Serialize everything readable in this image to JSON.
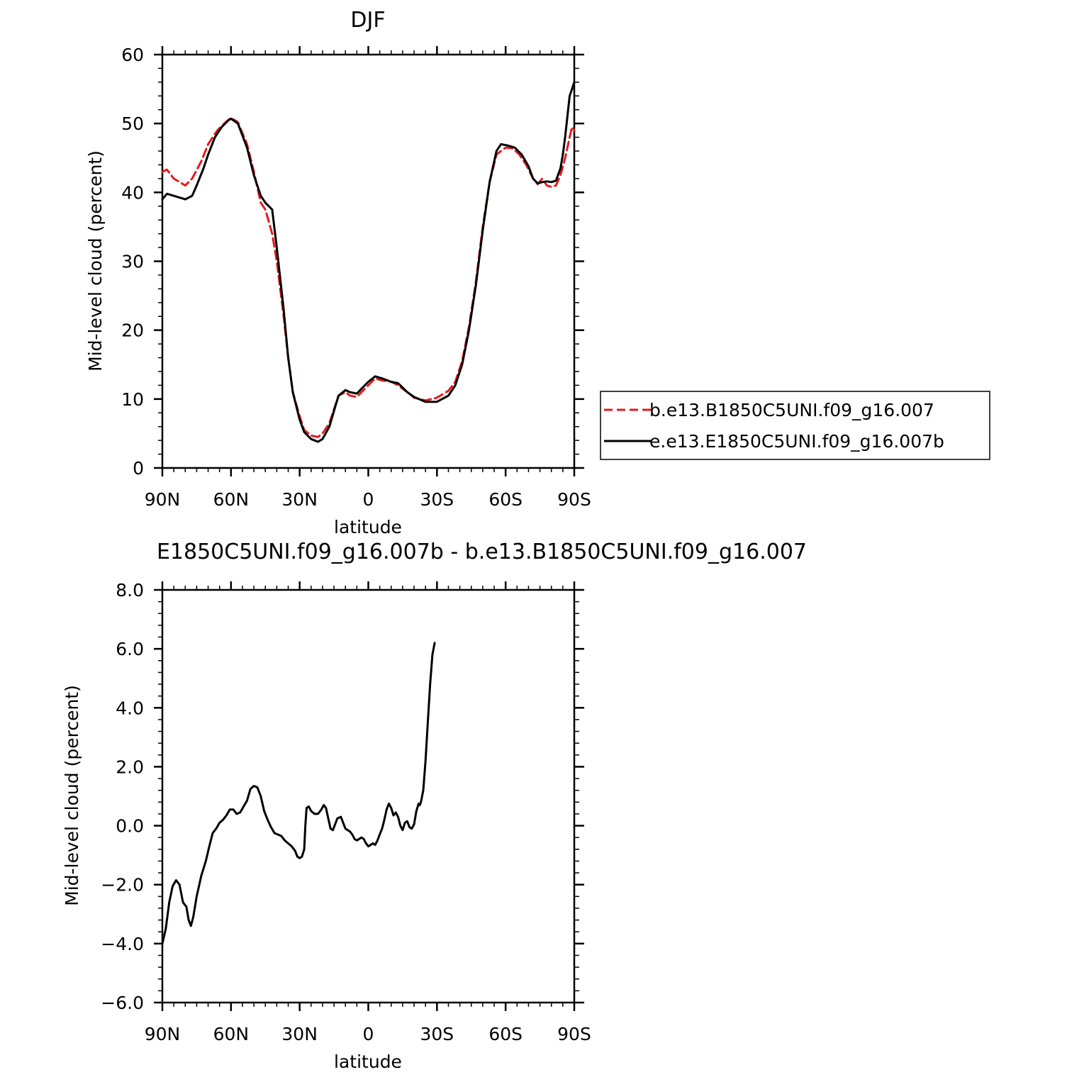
{
  "chart_data": [
    {
      "type": "line",
      "title": "DJF",
      "xlabel": "latitude",
      "ylabel": "Mid-level cloud (percent)",
      "xlim": [
        90,
        -90
      ],
      "ylim": [
        0,
        60
      ],
      "x_ticks": [
        {
          "value": 90,
          "label": "90N"
        },
        {
          "value": 60,
          "label": "60N"
        },
        {
          "value": 30,
          "label": "30N"
        },
        {
          "value": 0,
          "label": "0"
        },
        {
          "value": -30,
          "label": "30S"
        },
        {
          "value": -60,
          "label": "60S"
        },
        {
          "value": -90,
          "label": "90S"
        }
      ],
      "y_ticks": [
        {
          "value": 0,
          "label": "0"
        },
        {
          "value": 10,
          "label": "10"
        },
        {
          "value": 20,
          "label": "20"
        },
        {
          "value": 30,
          "label": "30"
        },
        {
          "value": 40,
          "label": "40"
        },
        {
          "value": 50,
          "label": "50"
        },
        {
          "value": 60,
          "label": "60"
        }
      ],
      "legend_position": "right",
      "series": [
        {
          "name": "b.e13.B1850C5UNI.f09_g16.007",
          "color": "#e41a1c",
          "dash": true,
          "points": [
            [
              90,
              43
            ],
            [
              88,
              43.3
            ],
            [
              85,
              42
            ],
            [
              80,
              41
            ],
            [
              77,
              42
            ],
            [
              73,
              44.5
            ],
            [
              70,
              47
            ],
            [
              66,
              49
            ],
            [
              62,
              50.3
            ],
            [
              60,
              50.8
            ],
            [
              57,
              50.2
            ],
            [
              53,
              47
            ],
            [
              50,
              43
            ],
            [
              47,
              38.5
            ],
            [
              45,
              37.5
            ],
            [
              42,
              34
            ],
            [
              40,
              30
            ],
            [
              37,
              22
            ],
            [
              35,
              16
            ],
            [
              33,
              11
            ],
            [
              30,
              7.5
            ],
            [
              28,
              5.5
            ],
            [
              25,
              4.7
            ],
            [
              22,
              4.5
            ],
            [
              20,
              5
            ],
            [
              17,
              6.5
            ],
            [
              15,
              8.5
            ],
            [
              13,
              10.5
            ],
            [
              10,
              11
            ],
            [
              8,
              10.5
            ],
            [
              5,
              10.3
            ],
            [
              3,
              11
            ],
            [
              0,
              12
            ],
            [
              -3,
              13
            ],
            [
              -6,
              12.7
            ],
            [
              -10,
              12.5
            ],
            [
              -13,
              12
            ],
            [
              -17,
              11
            ],
            [
              -20,
              10.2
            ],
            [
              -25,
              9.8
            ],
            [
              -30,
              10.2
            ],
            [
              -35,
              11.2
            ],
            [
              -38,
              12.5
            ],
            [
              -41,
              15.5
            ],
            [
              -44,
              20.5
            ],
            [
              -47,
              27
            ],
            [
              -50,
              35
            ],
            [
              -53,
              41.5
            ],
            [
              -56,
              45.5
            ],
            [
              -60,
              46.5
            ],
            [
              -63,
              46.4
            ],
            [
              -66,
              45.5
            ],
            [
              -69,
              44
            ],
            [
              -72,
              42
            ],
            [
              -74,
              41.2
            ],
            [
              -76,
              42
            ],
            [
              -78,
              41
            ],
            [
              -80,
              40.8
            ],
            [
              -82,
              41
            ],
            [
              -84,
              42.5
            ],
            [
              -86,
              45
            ],
            [
              -88,
              48
            ],
            [
              -89,
              49.5
            ],
            [
              -90,
              49
            ]
          ]
        },
        {
          "name": "e.e13.E1850C5UNI.f09_g16.007b",
          "color": "#000000",
          "dash": false,
          "points": [
            [
              90,
              39
            ],
            [
              88,
              39.8
            ],
            [
              85,
              39.5
            ],
            [
              82,
              39.2
            ],
            [
              80,
              39
            ],
            [
              77,
              39.5
            ],
            [
              75,
              41
            ],
            [
              72,
              43.5
            ],
            [
              70,
              45.5
            ],
            [
              67,
              48
            ],
            [
              64,
              49.5
            ],
            [
              61,
              50.5
            ],
            [
              60,
              50.7
            ],
            [
              57,
              50
            ],
            [
              53,
              46.5
            ],
            [
              50,
              42.5
            ],
            [
              47,
              39.5
            ],
            [
              45,
              38.5
            ],
            [
              42,
              37.5
            ],
            [
              40,
              32
            ],
            [
              37,
              23
            ],
            [
              35,
              16
            ],
            [
              33,
              11
            ],
            [
              30,
              7
            ],
            [
              28,
              5.2
            ],
            [
              25,
              4.2
            ],
            [
              22,
              3.8
            ],
            [
              20,
              4.2
            ],
            [
              17,
              6
            ],
            [
              15,
              8.3
            ],
            [
              13,
              10.5
            ],
            [
              10,
              11.3
            ],
            [
              8,
              11
            ],
            [
              5,
              10.8
            ],
            [
              3,
              11.5
            ],
            [
              0,
              12.5
            ],
            [
              -3,
              13.3
            ],
            [
              -6,
              13
            ],
            [
              -10,
              12.5
            ],
            [
              -13,
              12.3
            ],
            [
              -17,
              11
            ],
            [
              -20,
              10.3
            ],
            [
              -25,
              9.6
            ],
            [
              -30,
              9.6
            ],
            [
              -35,
              10.5
            ],
            [
              -38,
              12
            ],
            [
              -41,
              15
            ],
            [
              -44,
              20
            ],
            [
              -47,
              26.5
            ],
            [
              -50,
              34.5
            ],
            [
              -53,
              41.5
            ],
            [
              -56,
              46
            ],
            [
              -58,
              47
            ],
            [
              -61,
              46.8
            ],
            [
              -64,
              46.5
            ],
            [
              -67,
              45.5
            ],
            [
              -70,
              43.8
            ],
            [
              -72,
              42
            ],
            [
              -74,
              41.3
            ],
            [
              -76,
              41.5
            ],
            [
              -78,
              41.6
            ],
            [
              -80,
              41.5
            ],
            [
              -82,
              41.7
            ],
            [
              -84,
              43.5
            ],
            [
              -85,
              45.5
            ],
            [
              -86,
              48
            ],
            [
              -87,
              51
            ],
            [
              -88,
              54
            ],
            [
              -89,
              55
            ],
            [
              -90,
              56
            ]
          ]
        }
      ]
    },
    {
      "type": "line",
      "title": "E1850C5UNI.f09_g16.007b - b.e13.B1850C5UNI.f09_g16.007",
      "xlabel": "latitude",
      "ylabel": "Mid-level cloud (percent)",
      "xlim": [
        90,
        -90
      ],
      "ylim": [
        -6,
        8
      ],
      "x_ticks": [
        {
          "value": 90,
          "label": "90N"
        },
        {
          "value": 60,
          "label": "60N"
        },
        {
          "value": 30,
          "label": "30N"
        },
        {
          "value": 0,
          "label": "0"
        },
        {
          "value": -30,
          "label": "30S"
        },
        {
          "value": -60,
          "label": "60S"
        },
        {
          "value": -90,
          "label": "90S"
        }
      ],
      "y_ticks": [
        {
          "value": -6,
          "label": "−6.0"
        },
        {
          "value": -4,
          "label": "−4.0"
        },
        {
          "value": -2,
          "label": "−2.0"
        },
        {
          "value": 0,
          "label": "0.0"
        },
        {
          "value": 2,
          "label": "2.0"
        },
        {
          "value": 4,
          "label": "4.0"
        },
        {
          "value": 6,
          "label": "6.0"
        },
        {
          "value": 8,
          "label": "8.0"
        }
      ],
      "series": [
        {
          "color": "#000000",
          "dash": false,
          "points": [
            [
              90,
              -4
            ],
            [
              88.5,
              -3.5
            ],
            [
              87,
              -2.6
            ],
            [
              85.5,
              -2.05
            ],
            [
              84,
              -1.85
            ],
            [
              82.5,
              -2
            ],
            [
              81,
              -2.6
            ],
            [
              79.5,
              -2.75
            ],
            [
              78.5,
              -3.2
            ],
            [
              77.5,
              -3.4
            ],
            [
              76.5,
              -3.1
            ],
            [
              75,
              -2.4
            ],
            [
              73,
              -1.7
            ],
            [
              71,
              -1.2
            ],
            [
              69.5,
              -0.7
            ],
            [
              68,
              -0.25
            ],
            [
              66.5,
              -0.1
            ],
            [
              65,
              0.1
            ],
            [
              63.5,
              0.2
            ],
            [
              62,
              0.35
            ],
            [
              60.5,
              0.55
            ],
            [
              59,
              0.55
            ],
            [
              57.5,
              0.4
            ],
            [
              56,
              0.45
            ],
            [
              54.5,
              0.65
            ],
            [
              53,
              0.85
            ],
            [
              51.5,
              1.25
            ],
            [
              50,
              1.35
            ],
            [
              48.5,
              1.3
            ],
            [
              47,
              1
            ],
            [
              45.5,
              0.5
            ],
            [
              44,
              0.2
            ],
            [
              42.5,
              -0.05
            ],
            [
              41,
              -0.25
            ],
            [
              39.5,
              -0.3
            ],
            [
              38,
              -0.35
            ],
            [
              36.5,
              -0.5
            ],
            [
              35,
              -0.6
            ],
            [
              33.5,
              -0.7
            ],
            [
              32,
              -0.85
            ],
            [
              31,
              -1.05
            ],
            [
              30,
              -1.1
            ],
            [
              29,
              -1.05
            ],
            [
              28,
              -0.8
            ],
            [
              27.5,
              0
            ],
            [
              27,
              0.6
            ],
            [
              26,
              0.65
            ],
            [
              25,
              0.5
            ],
            [
              23.5,
              0.4
            ],
            [
              22,
              0.4
            ],
            [
              20.5,
              0.55
            ],
            [
              19.5,
              0.7
            ],
            [
              18.5,
              0.6
            ],
            [
              17.5,
              0.25
            ],
            [
              16.5,
              -0.1
            ],
            [
              15.5,
              -0.15
            ],
            [
              14.5,
              0.05
            ],
            [
              13.5,
              0.25
            ],
            [
              12,
              0.3
            ],
            [
              11,
              0.1
            ],
            [
              10,
              -0.1
            ],
            [
              9,
              -0.15
            ],
            [
              8,
              -0.2
            ],
            [
              7,
              -0.3
            ],
            [
              6,
              -0.45
            ],
            [
              5,
              -0.5
            ],
            [
              4,
              -0.45
            ],
            [
              3,
              -0.4
            ],
            [
              2,
              -0.45
            ],
            [
              1,
              -0.6
            ],
            [
              0,
              -0.7
            ],
            [
              -1,
              -0.65
            ],
            [
              -2,
              -0.6
            ],
            [
              -3,
              -0.65
            ],
            [
              -4,
              -0.5
            ],
            [
              -5,
              -0.3
            ],
            [
              -6,
              -0.1
            ],
            [
              -7,
              0.2
            ],
            [
              -8,
              0.55
            ],
            [
              -9,
              0.75
            ],
            [
              -10,
              0.6
            ],
            [
              -11,
              0.35
            ],
            [
              -12,
              0.45
            ],
            [
              -13,
              0.3
            ],
            [
              -14,
              0
            ],
            [
              -15,
              -0.15
            ],
            [
              -16,
              0.1
            ],
            [
              -17,
              0.15
            ],
            [
              -18,
              -0.05
            ],
            [
              -19,
              -0.1
            ],
            [
              -20,
              0.05
            ],
            [
              -21,
              0.5
            ],
            [
              -22,
              0.75
            ],
            [
              -22.5,
              0.7
            ],
            [
              -23,
              0.8
            ],
            [
              -24,
              1.2
            ],
            [
              -25,
              2.2
            ],
            [
              -26,
              3.5
            ],
            [
              -27,
              4.8
            ],
            [
              -28,
              5.8
            ],
            [
              -29,
              6.2
            ]
          ]
        }
      ]
    }
  ]
}
